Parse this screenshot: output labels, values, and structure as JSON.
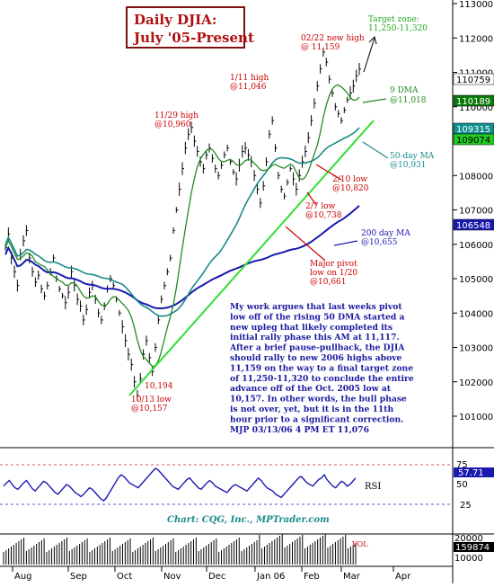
{
  "chart_data": {
    "type": "bar",
    "title_line1": "Daily DJIA:",
    "title_line2": "July '05-Present",
    "x_months": [
      "Aug",
      "Sep",
      "Oct",
      "Nov",
      "Dec",
      "Jan 06",
      "Feb",
      "Mar",
      "Apr"
    ],
    "price_axis": {
      "ticks": [
        "113000",
        "112000",
        "111000",
        "110000",
        "109000",
        "108000",
        "107000",
        "106000",
        "105000",
        "104000",
        "103000",
        "102000",
        "101000"
      ],
      "ylim": [
        10080,
        11300
      ]
    },
    "price_boxes": [
      {
        "label": "110759",
        "value": 11075.9,
        "color": "#ffffff",
        "text_color": "#000000"
      },
      {
        "label": "110189",
        "value": 11018.9,
        "color": "#0a7a0a",
        "text_color": "#ffffff"
      },
      {
        "label": "109315",
        "value": 10931.5,
        "color": "#0f8f8f",
        "text_color": "#ffffff"
      },
      {
        "label": "109074",
        "value": 10907.4,
        "color": "#22cc22",
        "text_color": "#000000"
      },
      {
        "label": "106548",
        "value": 10654.8,
        "color": "#1a1ab0",
        "text_color": "#ffffff"
      }
    ],
    "series": [
      {
        "name": "9 DMA",
        "color": "#228b22"
      },
      {
        "name": "50-day MA",
        "color": "#1a8a8a"
      },
      {
        "name": "200 day MA",
        "color": "#1a1ab0"
      }
    ],
    "price_bars": [
      10590,
      10630,
      10560,
      10520,
      10480,
      10570,
      10610,
      10640,
      10560,
      10520,
      10490,
      10510,
      10470,
      10450,
      10480,
      10520,
      10560,
      10500,
      10470,
      10450,
      10430,
      10460,
      10520,
      10480,
      10440,
      10420,
      10380,
      10410,
      10460,
      10480,
      10440,
      10400,
      10380,
      10420,
      10470,
      10500,
      10480,
      10440,
      10400,
      10360,
      10320,
      10280,
      10250,
      10200,
      10160,
      10210,
      10280,
      10320,
      10270,
      10230,
      10300,
      10380,
      10440,
      10480,
      10520,
      10560,
      10640,
      10700,
      10760,
      10820,
      10880,
      10920,
      10940,
      10900,
      10870,
      10840,
      10820,
      10860,
      10880,
      10850,
      10820,
      10800,
      10830,
      10860,
      10880,
      10840,
      10810,
      10790,
      10830,
      10870,
      10880,
      10860,
      10840,
      10800,
      10760,
      10720,
      10770,
      10840,
      10920,
      10960,
      10880,
      10800,
      10760,
      10740,
      10780,
      10820,
      10790,
      10760,
      10800,
      10840,
      10870,
      10910,
      10960,
      11010,
      11060,
      11110,
      11159,
      11130,
      11080,
      11040,
      11000,
      10980,
      10960,
      10990,
      11020,
      11040,
      11060,
      11090,
      11110
    ],
    "annotations": [
      {
        "text_lines": [
          "02/22 new high",
          "@ 11,159"
        ],
        "color": "#cc0000"
      },
      {
        "text_lines": [
          "1/11 high",
          "@11,046"
        ],
        "color": "#cc0000"
      },
      {
        "text_lines": [
          "11/29 high",
          "@10,960"
        ],
        "color": "#cc0000"
      },
      {
        "text_lines": [
          "2/10 low",
          "@10,820"
        ],
        "color": "#cc0000"
      },
      {
        "text_lines": [
          "2/7 low",
          "@10,738"
        ],
        "color": "#cc0000"
      },
      {
        "text_lines": [
          "Major pivot",
          "low on 1/20",
          "@10,661"
        ],
        "color": "#cc0000"
      },
      {
        "text_lines": [
          "10,194"
        ],
        "color": "#cc0000"
      },
      {
        "text_lines": [
          "10/13 low",
          "@10,157"
        ],
        "color": "#cc0000"
      },
      {
        "text_lines": [
          "Target zone:",
          "11,250-11,320"
        ],
        "color": "#22aa22"
      },
      {
        "text_lines": [
          "9 DMA",
          "@11,018"
        ],
        "color": "#228b22"
      },
      {
        "text_lines": [
          "50-day MA",
          "@10,931"
        ],
        "color": "#1a8a8a"
      },
      {
        "text_lines": [
          "200 day MA",
          "@10,655"
        ],
        "color": "#1a1ab0"
      }
    ],
    "commentary_lines": [
      "My work argues that last weeks pivot",
      "low off of the rising 50 DMA started a",
      "new upleg that likely completed its",
      "initial rally phase this AM at 11,117.",
      "After a brief pause-pullback, the DJIA",
      "should rally to new 2006 highs above",
      "11,159 on the way to a final target zone",
      "of 11,250-11,320 to conclude the entire",
      "advance off of the Oct. 2005 low at",
      "10,157. In other words, the bull phase",
      "is not over, yet, but it is in the 11th",
      "hour prior to a significant correction.",
      "MJP  03/13/06 4 PM ET  11,076"
    ],
    "rsi": {
      "name": "RSI",
      "ticks": [
        "75",
        "50",
        "25"
      ],
      "last_label": "57.71",
      "values": [
        48,
        52,
        55,
        50,
        46,
        44,
        48,
        52,
        55,
        50,
        45,
        42,
        46,
        50,
        54,
        52,
        48,
        44,
        40,
        38,
        42,
        46,
        50,
        48,
        44,
        40,
        38,
        35,
        38,
        42,
        46,
        44,
        40,
        36,
        32,
        30,
        34,
        40,
        46,
        52,
        58,
        62,
        60,
        56,
        52,
        50,
        48,
        46,
        50,
        54,
        58,
        62,
        66,
        70,
        68,
        64,
        60,
        56,
        52,
        48,
        46,
        44,
        48,
        52,
        56,
        58,
        54,
        50,
        46,
        44,
        48,
        52,
        55,
        52,
        48,
        46,
        44,
        42,
        40,
        44,
        48,
        50,
        48,
        46,
        44,
        42,
        46,
        50,
        54,
        58,
        55,
        50,
        46,
        44,
        42,
        38,
        36,
        34,
        38,
        42,
        46,
        50,
        54,
        58,
        60,
        56,
        52,
        50,
        48,
        52,
        56,
        58,
        62,
        56,
        52,
        48,
        46,
        50,
        54,
        52,
        48,
        50,
        54,
        58
      ]
    },
    "volume": {
      "label": "VOL",
      "ticks": [
        "20000",
        "10000"
      ],
      "last_label": "159874"
    },
    "credit": "Chart: CQG, Inc., MPTrader.com"
  }
}
